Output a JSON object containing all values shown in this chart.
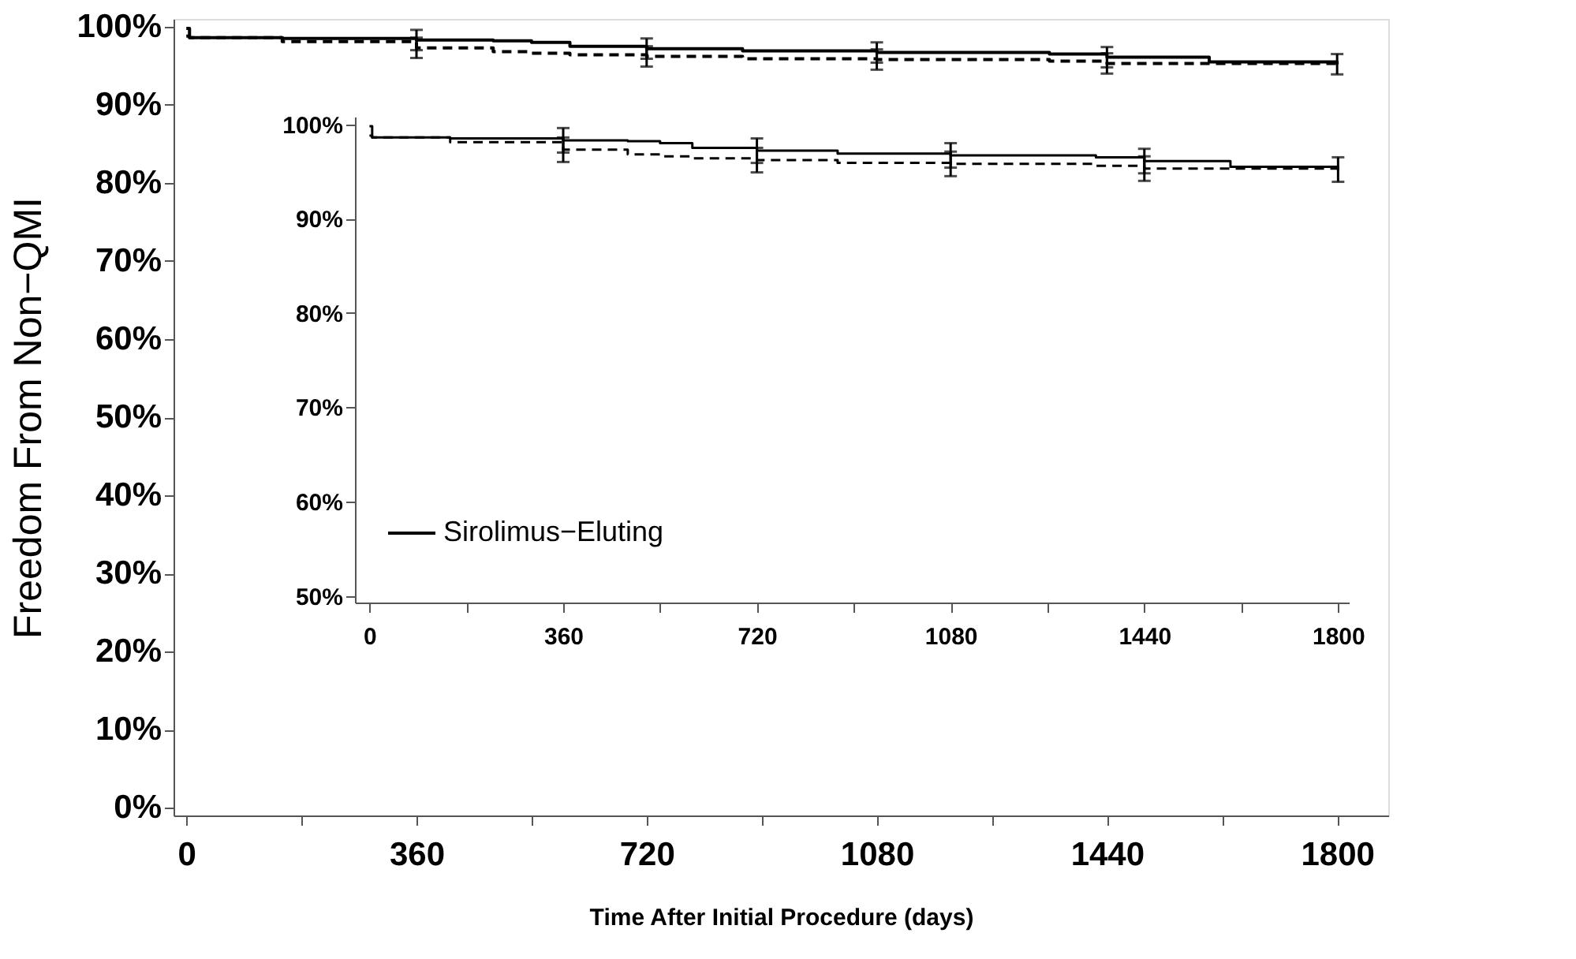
{
  "chart_data": [
    {
      "type": "step",
      "xlabel": "Time After Initial Procedure (days)",
      "ylabel": "Freedom From Non−QMI",
      "xlim": [
        -20,
        1880
      ],
      "ylim": [
        -1,
        101
      ],
      "xticks": [
        0,
        {
          "value": 180,
          "label": null
        },
        360,
        {
          "value": 540,
          "label": null
        },
        720,
        {
          "value": 900,
          "label": null
        },
        1080,
        {
          "value": 1260,
          "label": null
        },
        1440,
        {
          "value": 1620,
          "label": null
        },
        1800
      ],
      "yticks": [
        {
          "value": 0,
          "label": "0%"
        },
        {
          "value": 10,
          "label": "10%"
        },
        {
          "value": 20,
          "label": "20%"
        },
        {
          "value": 30,
          "label": "30%"
        },
        {
          "value": 40,
          "label": "40%"
        },
        {
          "value": 50,
          "label": "50%"
        },
        {
          "value": 60,
          "label": "60%"
        },
        {
          "value": 70,
          "label": "70%"
        },
        {
          "value": 80,
          "label": "80%"
        },
        {
          "value": 90,
          "label": "90%"
        },
        {
          "value": 100,
          "label": "100%"
        }
      ],
      "grid": false,
      "legend": false,
      "x": [
        0,
        5,
        150,
        360,
        480,
        540,
        600,
        720,
        870,
        1080,
        1350,
        1440,
        1600,
        1800
      ],
      "series": [
        {
          "color": "#000000",
          "line_style": "solid",
          "values": [
            99.8,
            98.6,
            98.5,
            98.3,
            98.2,
            98.0,
            97.5,
            97.2,
            96.9,
            96.7,
            96.5,
            96.1,
            95.5,
            95.2
          ],
          "errors": [
            null,
            null,
            null,
            1.3,
            null,
            null,
            null,
            1.3,
            null,
            1.3,
            null,
            1.3,
            null,
            1.3
          ]
        },
        {
          "color": "#000000",
          "line_style": "dashed",
          "values": [
            98.8,
            98.6,
            98.1,
            97.3,
            96.8,
            96.6,
            96.4,
            96.2,
            95.9,
            95.8,
            95.6,
            95.3,
            95.3,
            95.0
          ],
          "errors": [
            null,
            null,
            null,
            1.3,
            null,
            null,
            null,
            1.3,
            null,
            1.3,
            null,
            1.3,
            null,
            null
          ]
        }
      ]
    },
    {
      "type": "step",
      "xlim": [
        -27,
        1820
      ],
      "ylim": [
        49.3,
        100.8
      ],
      "xticks": [
        0,
        {
          "value": 180,
          "label": null
        },
        360,
        {
          "value": 540,
          "label": null
        },
        720,
        {
          "value": 900,
          "label": null
        },
        1080,
        {
          "value": 1260,
          "label": null
        },
        1440,
        {
          "value": 1620,
          "label": null
        },
        1800
      ],
      "yticks": [
        {
          "value": 50,
          "label": "50%"
        },
        {
          "value": 60,
          "label": "60%"
        },
        {
          "value": 70,
          "label": "70%"
        },
        {
          "value": 80,
          "label": "80%"
        },
        {
          "value": 90,
          "label": "90%"
        },
        {
          "value": 100,
          "label": "100%"
        }
      ],
      "grid": false,
      "legend": "bottom left",
      "x": [
        0,
        5,
        150,
        360,
        480,
        540,
        600,
        720,
        870,
        1080,
        1350,
        1440,
        1600,
        1800
      ],
      "series": [
        {
          "name": "Sirolimus−Eluting",
          "color": "#000000",
          "line_style": "solid",
          "values": [
            99.8,
            98.6,
            98.5,
            98.3,
            98.2,
            98.0,
            97.5,
            97.2,
            96.9,
            96.7,
            96.5,
            96.1,
            95.5,
            95.2
          ],
          "errors": [
            null,
            null,
            null,
            1.3,
            null,
            null,
            null,
            1.3,
            null,
            1.3,
            null,
            1.3,
            null,
            1.3
          ]
        },
        {
          "color": "#000000",
          "line_style": "dashed",
          "values": [
            98.8,
            98.6,
            98.1,
            97.3,
            96.8,
            96.6,
            96.4,
            96.2,
            95.9,
            95.8,
            95.6,
            95.3,
            95.3,
            95.0
          ],
          "errors": [
            null,
            null,
            null,
            1.3,
            null,
            null,
            null,
            1.3,
            null,
            1.3,
            null,
            1.3,
            null,
            null
          ]
        }
      ]
    }
  ]
}
